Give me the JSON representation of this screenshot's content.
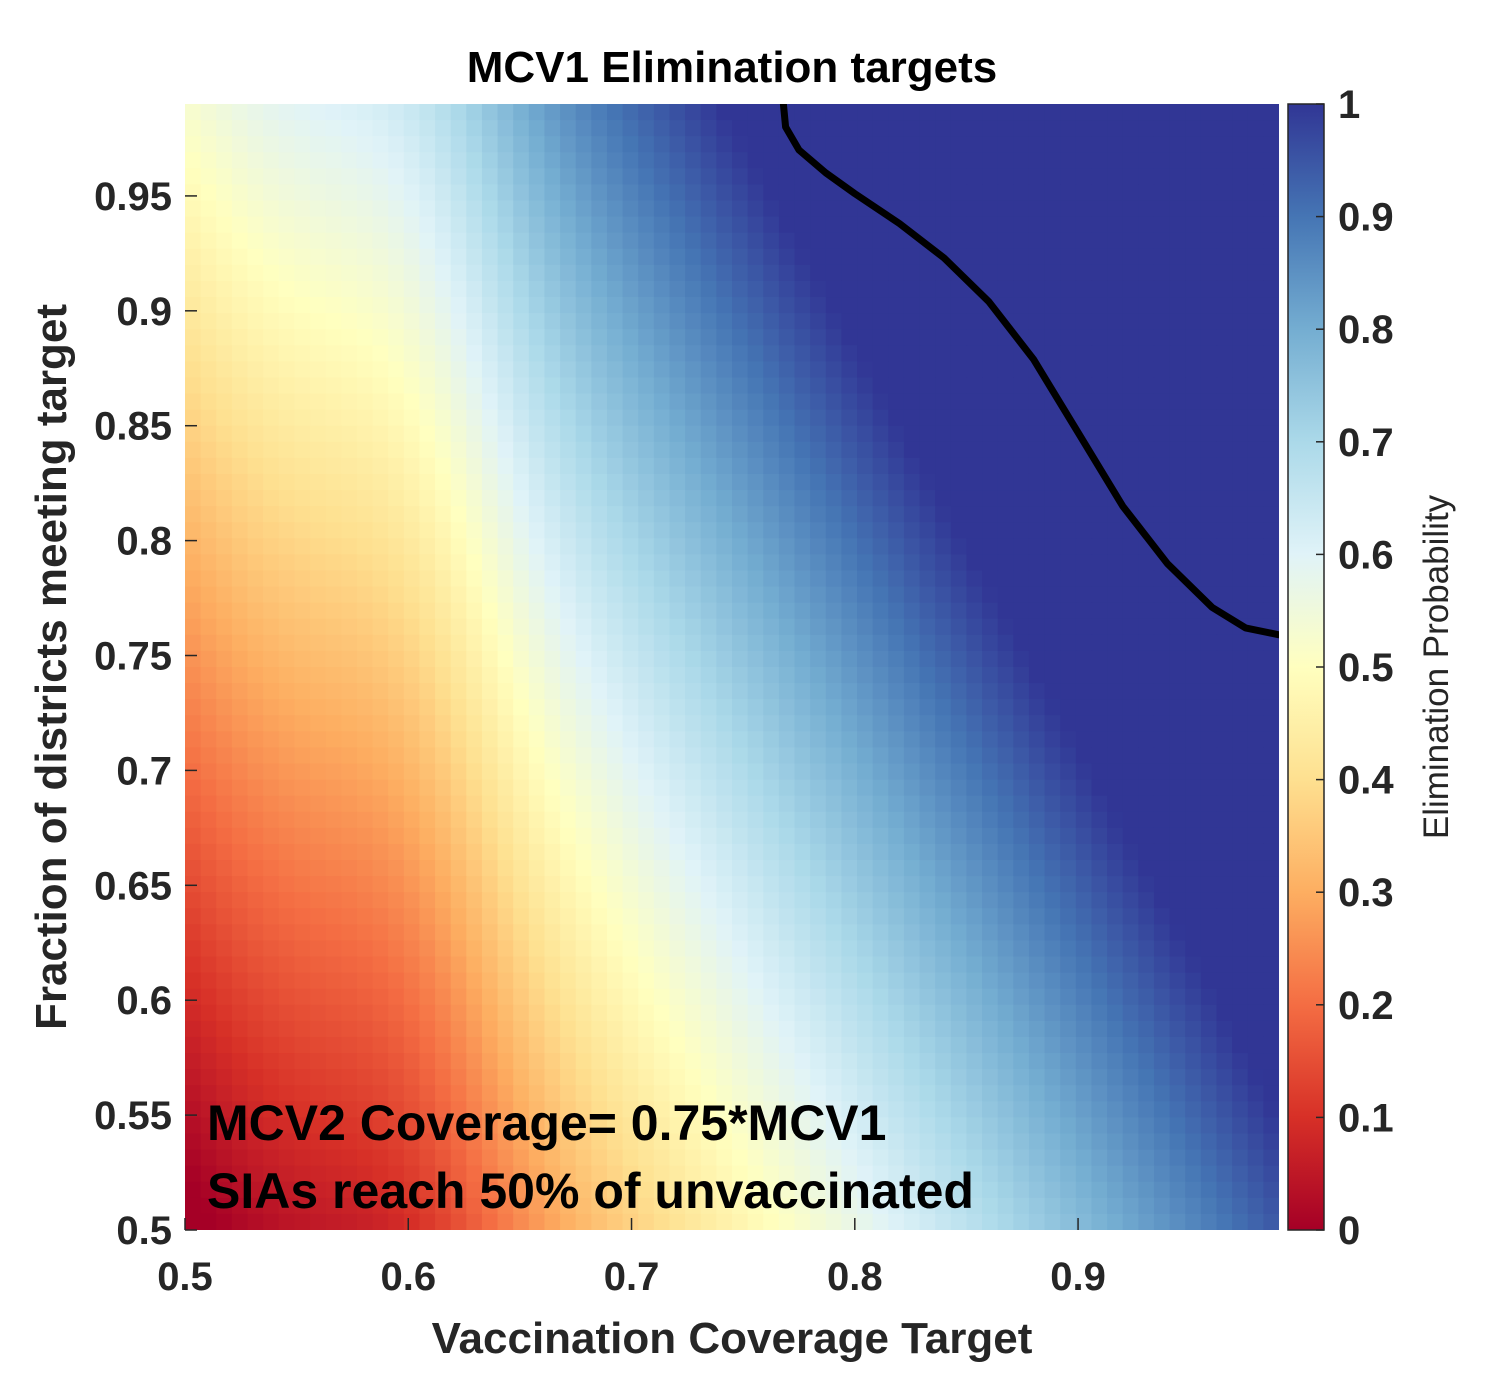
{
  "chart_data": {
    "type": "heatmap",
    "title": "MCV1 Elimination targets",
    "xlabel": "Vaccination Coverage Target",
    "ylabel": "Fraction of districts meeting target",
    "xlim": [
      0.5,
      0.99
    ],
    "ylim": [
      0.5,
      0.99
    ],
    "x_ticks": [
      0.5,
      0.6,
      0.7,
      0.8,
      0.9
    ],
    "x_tick_labels": [
      "0.5",
      "0.6",
      "0.7",
      "0.8",
      "0.9"
    ],
    "y_ticks": [
      0.5,
      0.55,
      0.6,
      0.65,
      0.7,
      0.75,
      0.8,
      0.85,
      0.9,
      0.95
    ],
    "y_tick_labels": [
      "0.5",
      "0.55",
      "0.6",
      "0.65",
      "0.7",
      "0.75",
      "0.8",
      "0.85",
      "0.9",
      "0.95"
    ],
    "colorbar": {
      "label": "Elimination Probability",
      "range": [
        0,
        1
      ],
      "ticks": [
        0,
        0.1,
        0.2,
        0.3,
        0.4,
        0.5,
        0.6,
        0.7,
        0.8,
        0.9,
        1
      ],
      "tick_labels": [
        "0",
        "0.1",
        "0.2",
        "0.3",
        "0.4",
        "0.5",
        "0.6",
        "0.7",
        "0.8",
        "0.9",
        "1"
      ],
      "colormap": [
        "#a50026",
        "#d73027",
        "#f46d43",
        "#fdae61",
        "#fee090",
        "#ffffbf",
        "#e0f3f8",
        "#abd9e9",
        "#74add1",
        "#4575b4",
        "#313695"
      ]
    },
    "contour": {
      "level": 0.8,
      "points": [
        [
          0.768,
          0.99
        ],
        [
          0.769,
          0.98
        ],
        [
          0.775,
          0.97
        ],
        [
          0.787,
          0.96
        ],
        [
          0.8,
          0.951
        ],
        [
          0.82,
          0.938
        ],
        [
          0.84,
          0.923
        ],
        [
          0.86,
          0.904
        ],
        [
          0.88,
          0.879
        ],
        [
          0.9,
          0.847
        ],
        [
          0.92,
          0.815
        ],
        [
          0.94,
          0.79
        ],
        [
          0.96,
          0.771
        ],
        [
          0.975,
          0.762
        ],
        [
          0.99,
          0.759
        ]
      ]
    },
    "grid": false,
    "legend": "none",
    "annotations": [
      "MCV2 Coverage= 0.75*MCV1",
      "SIAs reach 50% of unvaccinated"
    ]
  }
}
